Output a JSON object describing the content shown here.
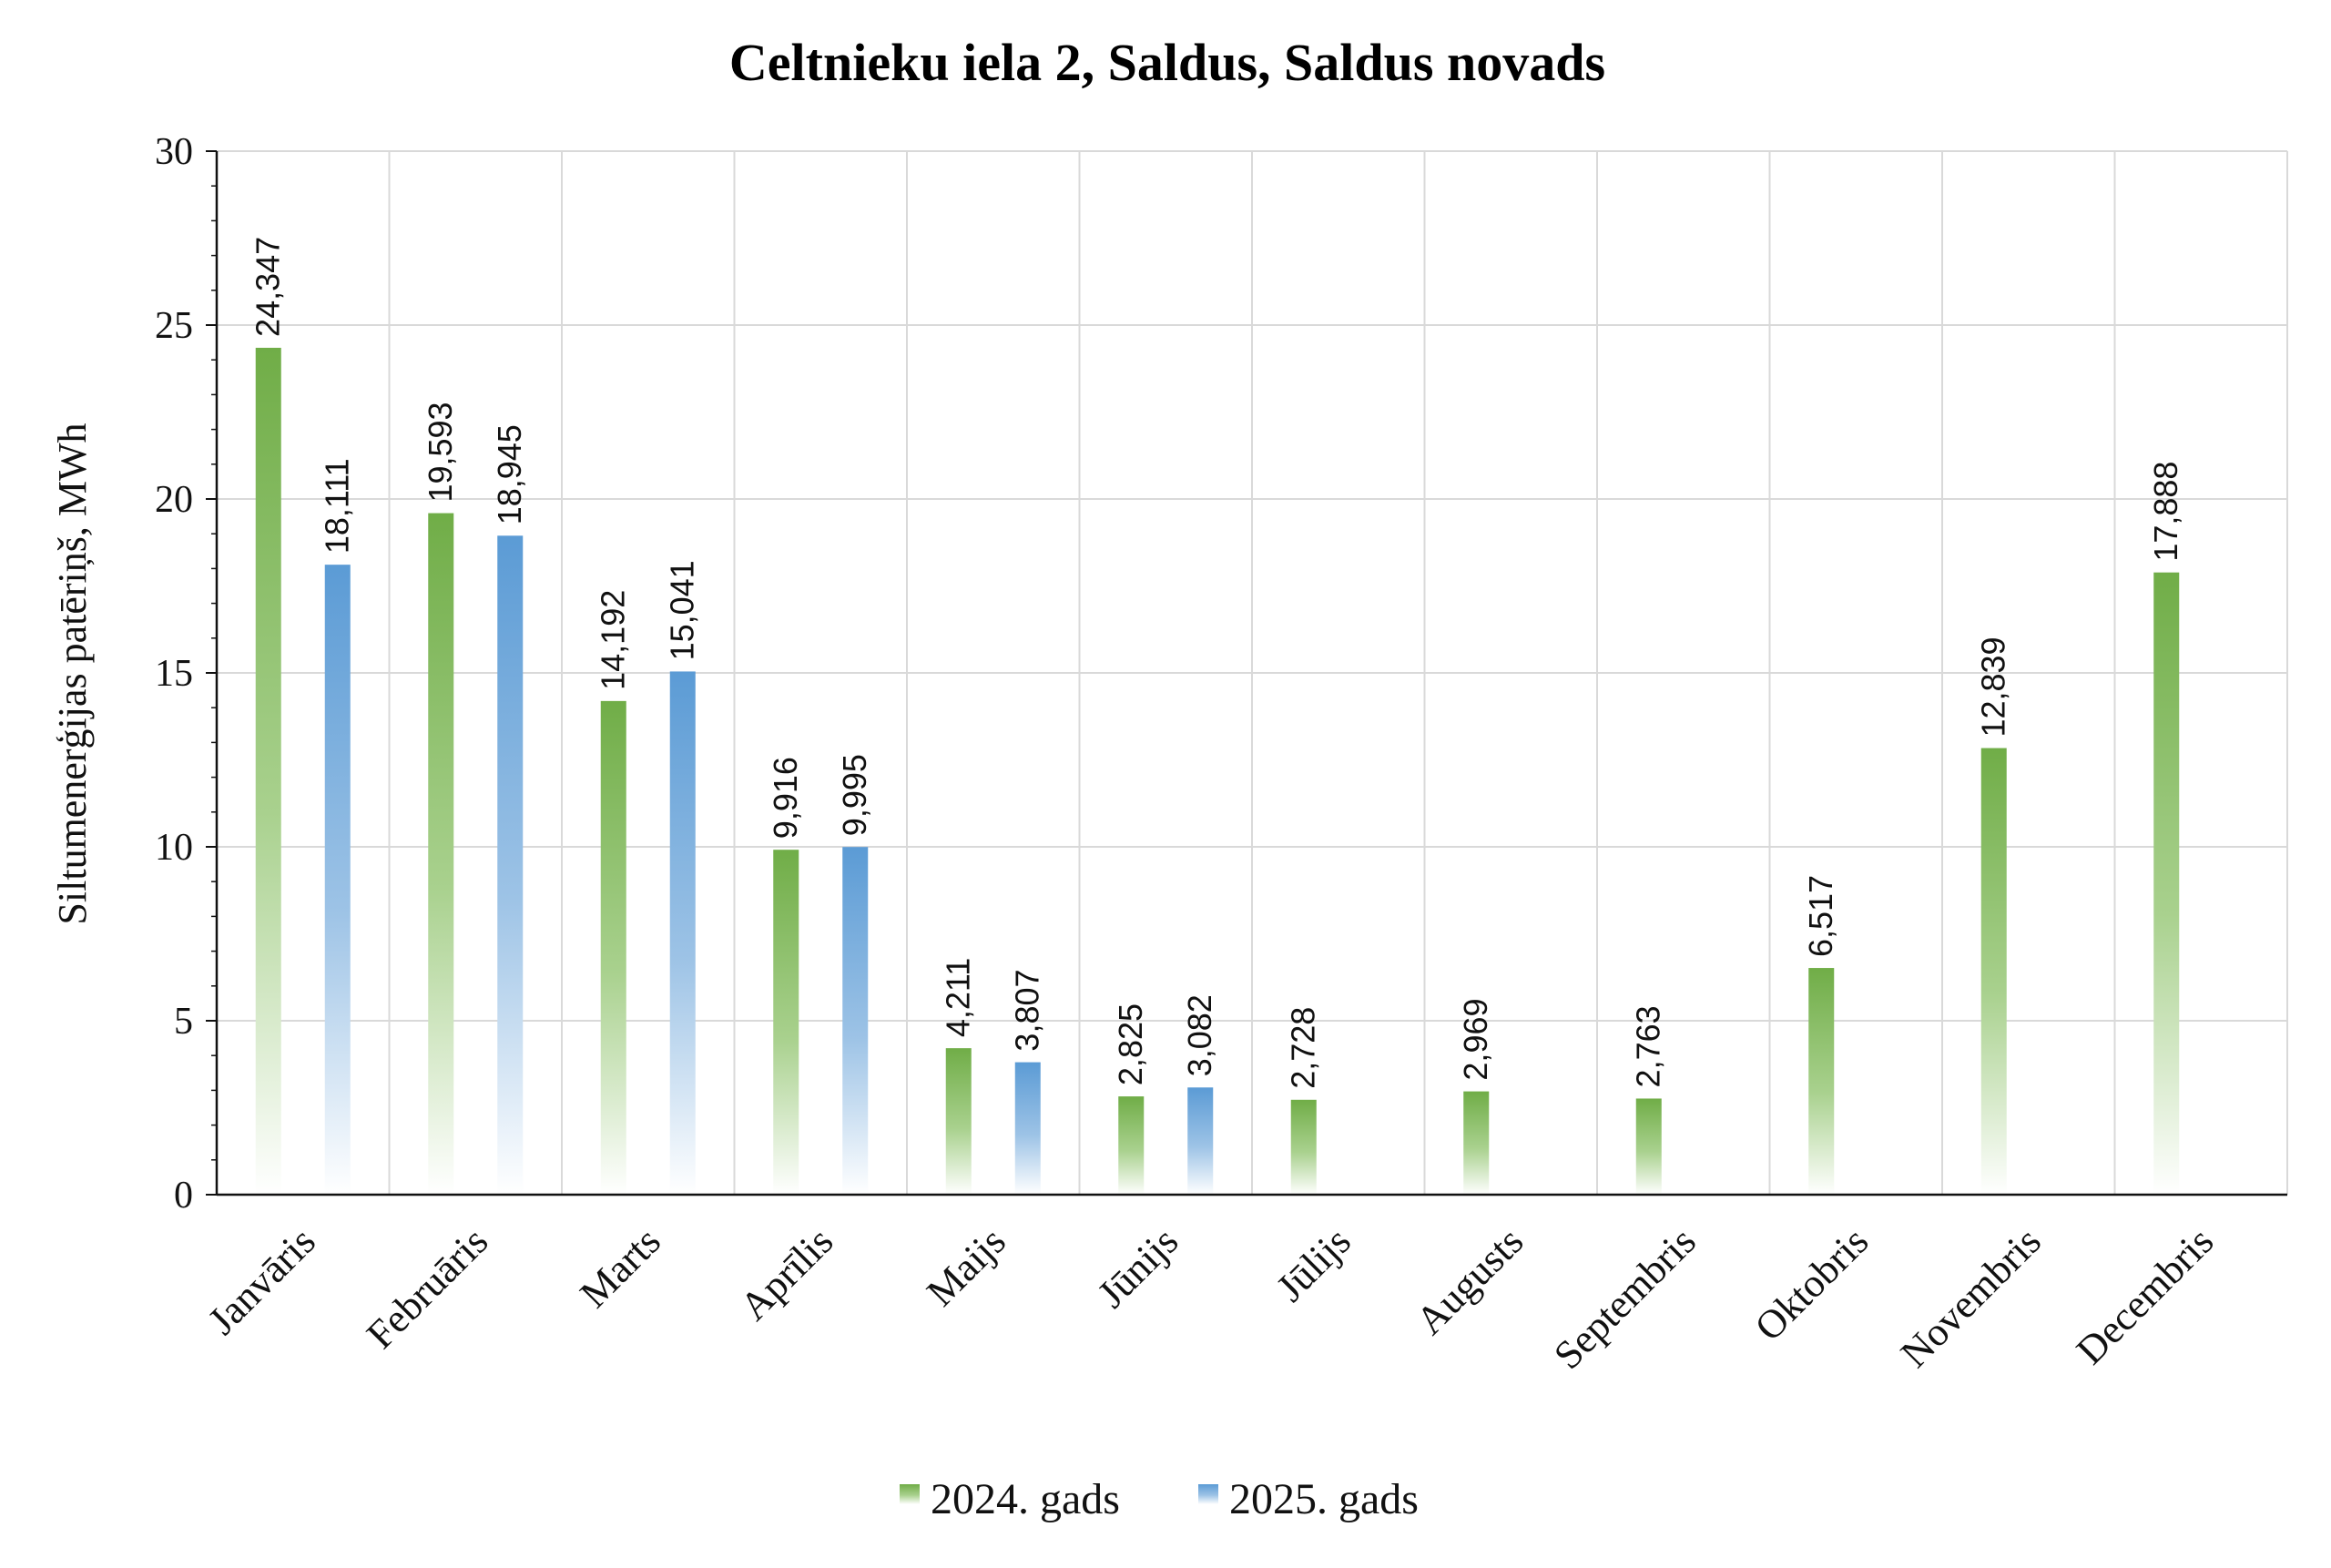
{
  "chart_data": {
    "type": "bar",
    "title": "Celtnieku iela 2, Saldus, Saldus novads",
    "ylabel": "Siltumenerģijas patēriņš, MWh",
    "xlabel": "",
    "ylim": [
      0,
      30
    ],
    "yticks": [
      "0",
      "5",
      "10",
      "15",
      "20",
      "25",
      "30"
    ],
    "grid": true,
    "legend_position": "bottom",
    "categories": [
      "Janvāris",
      "Februāris",
      "Marts",
      "Aprīlis",
      "Maijs",
      "Jūnijs",
      "Jūlijs",
      "Augusts",
      "Septembris",
      "Oktobris",
      "Novembris",
      "Decembris"
    ],
    "series": [
      {
        "name": "2024. gads",
        "color": "#70ad47",
        "values": [
          24.347,
          19.593,
          14.192,
          9.916,
          4.211,
          2.825,
          2.728,
          2.969,
          2.763,
          6.517,
          12.839,
          17.888
        ],
        "labels": [
          "24,347",
          "19,593",
          "14,192",
          "9,916",
          "4,211",
          "2,825",
          "2,728",
          "2,969",
          "2,763",
          "6,517",
          "12,839",
          "17,888"
        ]
      },
      {
        "name": "2025. gads",
        "color": "#5b9bd5",
        "values": [
          18.111,
          18.945,
          15.041,
          9.995,
          3.807,
          3.082,
          null,
          null,
          null,
          null,
          null,
          null
        ],
        "labels": [
          "18,111",
          "18,945",
          "15,041",
          "9,995",
          "3,807",
          "3,082",
          "",
          "",
          "",
          "",
          "",
          ""
        ]
      }
    ]
  }
}
